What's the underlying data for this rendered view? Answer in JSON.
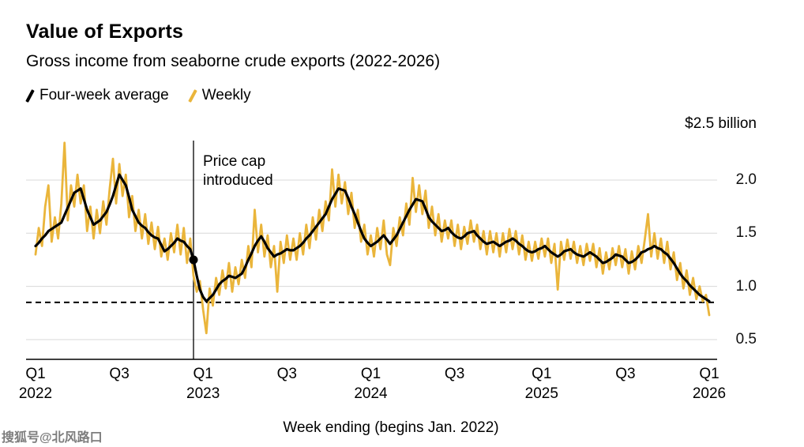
{
  "page": {
    "watermark": "搜狐号@北风路口"
  },
  "chart_data": {
    "type": "line",
    "title": "Value of Exports",
    "subtitle": "Gross income from seaborne crude exports (2022-2026)",
    "top_label": "$2.5 billion",
    "x_title": "Week ending (begins Jan. 2022)",
    "ylim": [
      0.3,
      2.5
    ],
    "grid": true,
    "legend_position": "top-left",
    "y_ticks": [
      {
        "value": 0.5,
        "label": "0.5"
      },
      {
        "value": 1.0,
        "label": "1.0"
      },
      {
        "value": 1.5,
        "label": "1.5"
      },
      {
        "value": 2.0,
        "label": "2.0"
      }
    ],
    "x_ticks": [
      {
        "week": 0,
        "lines": [
          "Q1",
          "2022"
        ]
      },
      {
        "week": 26,
        "lines": [
          "Q3"
        ]
      },
      {
        "week": 52,
        "lines": [
          "Q1",
          "2023"
        ]
      },
      {
        "week": 78,
        "lines": [
          "Q3"
        ]
      },
      {
        "week": 104,
        "lines": [
          "Q1",
          "2024"
        ]
      },
      {
        "week": 130,
        "lines": [
          "Q3"
        ]
      },
      {
        "week": 157,
        "lines": [
          "Q1",
          "2025"
        ]
      },
      {
        "week": 183,
        "lines": [
          "Q3"
        ]
      },
      {
        "week": 209,
        "lines": [
          "Q1",
          "2026"
        ]
      }
    ],
    "reference_line": {
      "value": 0.85,
      "style": "dashed",
      "color": "#000000"
    },
    "event_line": {
      "week": 49,
      "label_lines": [
        "Price cap",
        "introduced"
      ],
      "marker": {
        "week": 49,
        "value": 1.25
      }
    },
    "series": [
      {
        "name": "Four-week average",
        "color": "#000000",
        "width": 3.2,
        "values": [
          1.38,
          1.41,
          1.45,
          1.48,
          1.52,
          1.54,
          1.56,
          1.58,
          1.6,
          1.67,
          1.74,
          1.81,
          1.88,
          1.9,
          1.92,
          1.82,
          1.72,
          1.65,
          1.58,
          1.6,
          1.62,
          1.66,
          1.7,
          1.77,
          1.85,
          1.95,
          2.05,
          2.0,
          1.95,
          1.84,
          1.72,
          1.66,
          1.6,
          1.57,
          1.55,
          1.51,
          1.48,
          1.46,
          1.45,
          1.39,
          1.33,
          1.35,
          1.38,
          1.41,
          1.45,
          1.43,
          1.42,
          1.38,
          1.35,
          1.25,
          1.1,
          0.97,
          0.9,
          0.86,
          0.89,
          0.92,
          0.97,
          1.02,
          1.05,
          1.07,
          1.1,
          1.09,
          1.08,
          1.1,
          1.12,
          1.18,
          1.25,
          1.31,
          1.38,
          1.43,
          1.47,
          1.42,
          1.36,
          1.32,
          1.28,
          1.3,
          1.31,
          1.33,
          1.35,
          1.34,
          1.34,
          1.36,
          1.38,
          1.41,
          1.45,
          1.48,
          1.52,
          1.56,
          1.6,
          1.64,
          1.68,
          1.75,
          1.82,
          1.87,
          1.92,
          1.91,
          1.9,
          1.83,
          1.75,
          1.68,
          1.6,
          1.52,
          1.45,
          1.41,
          1.38,
          1.4,
          1.42,
          1.45,
          1.48,
          1.44,
          1.4,
          1.44,
          1.48,
          1.54,
          1.6,
          1.66,
          1.72,
          1.77,
          1.82,
          1.81,
          1.8,
          1.73,
          1.65,
          1.61,
          1.58,
          1.55,
          1.52,
          1.53,
          1.55,
          1.51,
          1.48,
          1.46,
          1.45,
          1.47,
          1.5,
          1.51,
          1.52,
          1.48,
          1.45,
          1.42,
          1.4,
          1.41,
          1.42,
          1.4,
          1.38,
          1.4,
          1.42,
          1.43,
          1.45,
          1.43,
          1.4,
          1.38,
          1.35,
          1.33,
          1.32,
          1.33,
          1.35,
          1.36,
          1.38,
          1.35,
          1.32,
          1.3,
          1.28,
          1.3,
          1.33,
          1.34,
          1.35,
          1.32,
          1.3,
          1.29,
          1.28,
          1.3,
          1.32,
          1.3,
          1.28,
          1.25,
          1.22,
          1.23,
          1.25,
          1.27,
          1.3,
          1.29,
          1.28,
          1.25,
          1.22,
          1.23,
          1.25,
          1.28,
          1.32,
          1.33,
          1.35,
          1.36,
          1.38,
          1.36,
          1.35,
          1.32,
          1.3,
          1.26,
          1.22,
          1.17,
          1.12,
          1.08,
          1.05,
          1.01,
          0.98,
          0.95,
          0.92,
          0.9,
          0.88,
          0.86
        ]
      },
      {
        "name": "Weekly",
        "color": "#EAB53B",
        "width": 2.8,
        "values": [
          1.3,
          1.55,
          1.38,
          1.75,
          1.95,
          1.42,
          1.65,
          1.45,
          1.78,
          2.35,
          1.62,
          1.95,
          1.75,
          2.05,
          1.78,
          1.95,
          1.52,
          1.75,
          1.45,
          1.72,
          1.5,
          1.8,
          1.58,
          1.92,
          2.2,
          1.78,
          2.15,
          1.85,
          2.05,
          1.65,
          1.85,
          1.52,
          1.72,
          1.45,
          1.68,
          1.4,
          1.6,
          1.35,
          1.56,
          1.28,
          1.45,
          1.25,
          1.5,
          1.32,
          1.58,
          1.3,
          1.55,
          1.22,
          1.45,
          1.1,
          0.95,
          1.05,
          0.78,
          0.56,
          0.98,
          0.82,
          1.08,
          0.92,
          1.15,
          0.98,
          1.22,
          0.95,
          1.18,
          1.02,
          1.25,
          1.08,
          1.38,
          1.18,
          1.72,
          1.32,
          1.58,
          1.28,
          1.48,
          1.18,
          1.38,
          0.95,
          1.42,
          1.22,
          1.48,
          1.25,
          1.45,
          1.25,
          1.5,
          1.3,
          1.58,
          1.36,
          1.65,
          1.44,
          1.72,
          1.52,
          1.8,
          1.62,
          2.1,
          1.75,
          2.05,
          1.78,
          1.98,
          1.68,
          1.88,
          1.55,
          1.72,
          1.42,
          1.58,
          1.3,
          1.48,
          1.28,
          1.55,
          1.35,
          1.62,
          1.3,
          1.2,
          1.55,
          1.38,
          1.65,
          1.48,
          1.78,
          1.58,
          2.02,
          1.7,
          1.95,
          1.68,
          1.9,
          1.55,
          1.75,
          1.48,
          1.68,
          1.42,
          1.62,
          1.45,
          1.62,
          1.38,
          1.58,
          1.35,
          1.56,
          1.4,
          1.62,
          1.42,
          1.58,
          1.35,
          1.52,
          1.3,
          1.52,
          1.32,
          1.5,
          1.28,
          1.5,
          1.32,
          1.54,
          1.35,
          1.52,
          1.3,
          1.48,
          1.25,
          1.42,
          1.24,
          1.42,
          1.26,
          1.45,
          1.28,
          1.45,
          1.22,
          1.4,
          0.97,
          1.42,
          1.25,
          1.44,
          1.26,
          1.42,
          1.22,
          1.38,
          1.2,
          1.4,
          1.24,
          1.4,
          1.18,
          1.36,
          1.12,
          1.32,
          1.16,
          1.36,
          1.2,
          1.38,
          1.18,
          1.35,
          1.12,
          1.33,
          1.16,
          1.38,
          1.22,
          1.44,
          1.68,
          1.28,
          1.5,
          1.26,
          1.45,
          1.22,
          1.42,
          1.16,
          1.32,
          1.06,
          1.22,
          0.98,
          1.15,
          0.92,
          1.08,
          0.88,
          1.0,
          0.86,
          0.92,
          0.73
        ]
      }
    ],
    "colors": {
      "grid": "#d8d8d8",
      "axis": "#000000"
    }
  }
}
